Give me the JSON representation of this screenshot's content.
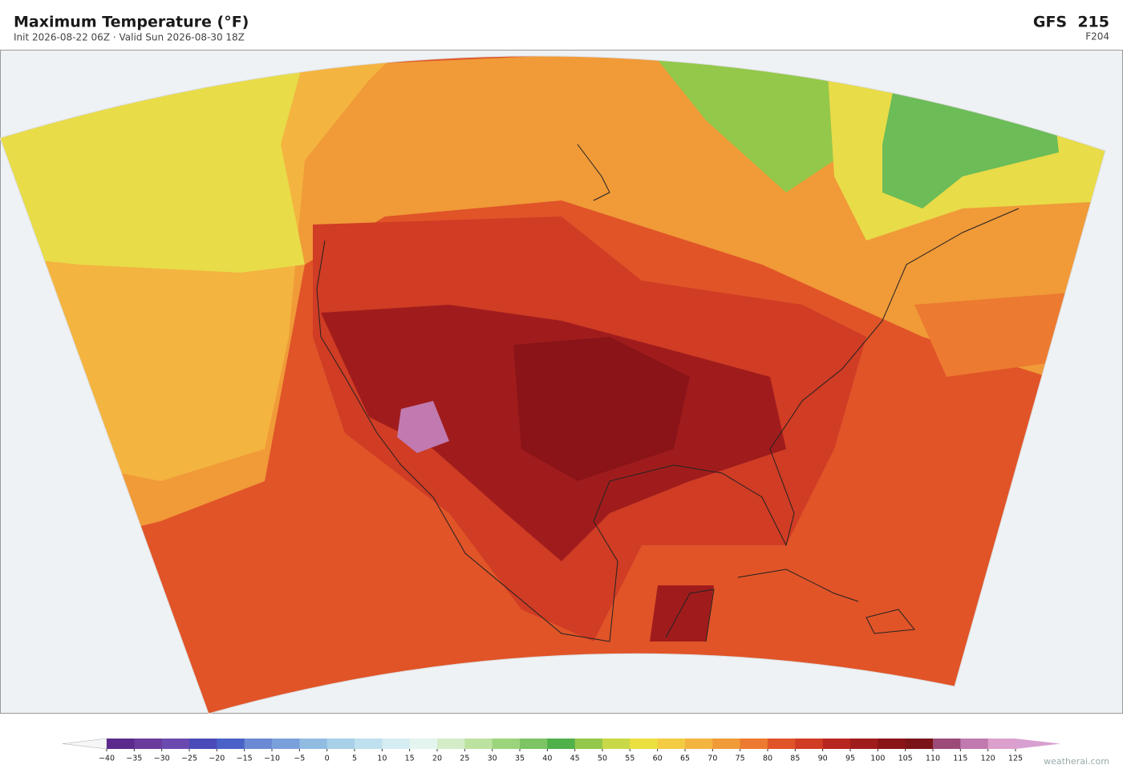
{
  "header": {
    "title": "Maximum Temperature  (°F)",
    "subtitle": "Init 2026-08-22 06Z  ·  Valid Sun 2026-08-30 18Z",
    "model": "GFS  215",
    "forecast_hour": "F204"
  },
  "colorbar": {
    "ticks": [
      {
        "value": -40,
        "label": "−40"
      },
      {
        "value": -35,
        "label": "−35"
      },
      {
        "value": -30,
        "label": "−30"
      },
      {
        "value": -25,
        "label": "−25"
      },
      {
        "value": -20,
        "label": "−20"
      },
      {
        "value": -15,
        "label": "−15"
      },
      {
        "value": -10,
        "label": "−10"
      },
      {
        "value": -5,
        "label": "−5"
      },
      0,
      5,
      10,
      15,
      20,
      25,
      30,
      35,
      40,
      45,
      50,
      55,
      60,
      65,
      70,
      75,
      80,
      85,
      90,
      95,
      100,
      105,
      110,
      115,
      120,
      125
    ],
    "colors": [
      "#5b2a8c",
      "#6a3a9c",
      "#6a4ab0",
      "#4a4ab8",
      "#4a62c8",
      "#6a8ad4",
      "#7aa0dc",
      "#90bce2",
      "#a8d0e8",
      "#bfe0ee",
      "#d4ecf2",
      "#e4f4ee",
      "#d4ecc8",
      "#bce2a0",
      "#9cd47c",
      "#7cc464",
      "#50b04a",
      "#94c84a",
      "#c8d848",
      "#ece040",
      "#f4cc44",
      "#f4b440",
      "#f09a38",
      "#ec7a30",
      "#e05428",
      "#d03c24",
      "#b82620",
      "#a01c1c",
      "#8a1418",
      "#7a1418",
      "#9c4a78",
      "#c07ab0",
      "#dca0cc"
    ],
    "extend_low_color": "#f4f6f8",
    "extend_high_color": "#d8a0d0"
  },
  "footer": {
    "watermark": "weatherai.com"
  }
}
